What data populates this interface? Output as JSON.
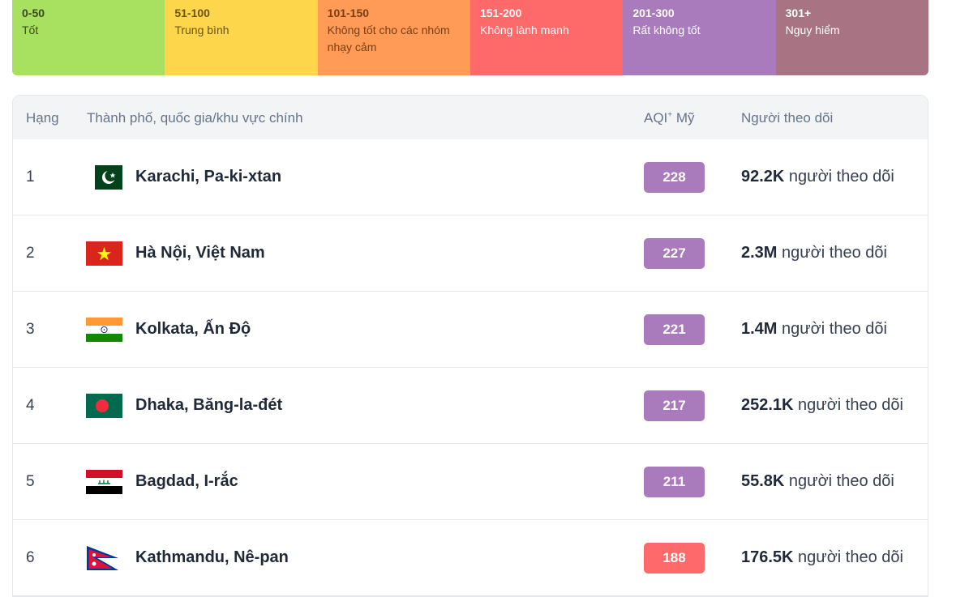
{
  "legend": [
    {
      "range": "0-50",
      "label": "Tốt",
      "color": "#a8e05f"
    },
    {
      "range": "51-100",
      "label": "Trung bình",
      "color": "#fdd64b"
    },
    {
      "range": "101-150",
      "label": "Không tốt cho các nhóm nhạy cảm",
      "color": "#ff9b57"
    },
    {
      "range": "151-200",
      "label": "Không lành mạnh",
      "color": "#fe6a69"
    },
    {
      "range": "201-300",
      "label": "Rất không tốt",
      "color": "#a97abc"
    },
    {
      "range": "301+",
      "label": "Nguy hiểm",
      "color": "#a87383"
    }
  ],
  "table": {
    "headers": {
      "rank": "Hạng",
      "city": "Thành phố, quốc gia/khu vực chính",
      "aqi": "AQI",
      "aqi_sup": "+",
      "aqi_suffix": " Mỹ",
      "followers": "Người theo dõi"
    },
    "follow_suffix": " người theo dõi",
    "rows": [
      {
        "rank": "1",
        "flag": "pakistan-flag-icon",
        "city": "Karachi, Pa-ki-xtan",
        "aqi": "228",
        "aqi_color": "#a97abc",
        "followers": "92.2K"
      },
      {
        "rank": "2",
        "flag": "vietnam-flag-icon",
        "city": "Hà Nội, Việt Nam",
        "aqi": "227",
        "aqi_color": "#a97abc",
        "followers": "2.3M"
      },
      {
        "rank": "3",
        "flag": "india-flag-icon",
        "city": "Kolkata, Ấn Độ",
        "aqi": "221",
        "aqi_color": "#a97abc",
        "followers": "1.4M"
      },
      {
        "rank": "4",
        "flag": "bangladesh-flag-icon",
        "city": "Dhaka, Băng-la-đét",
        "aqi": "217",
        "aqi_color": "#a97abc",
        "followers": "252.1K"
      },
      {
        "rank": "5",
        "flag": "iraq-flag-icon",
        "city": "Bagdad, I-rắc",
        "aqi": "211",
        "aqi_color": "#a97abc",
        "followers": "55.8K"
      },
      {
        "rank": "6",
        "flag": "nepal-flag-icon",
        "city": "Kathmandu, Nê-pan",
        "aqi": "188",
        "aqi_color": "#fe6a69",
        "followers": "176.5K"
      }
    ]
  }
}
